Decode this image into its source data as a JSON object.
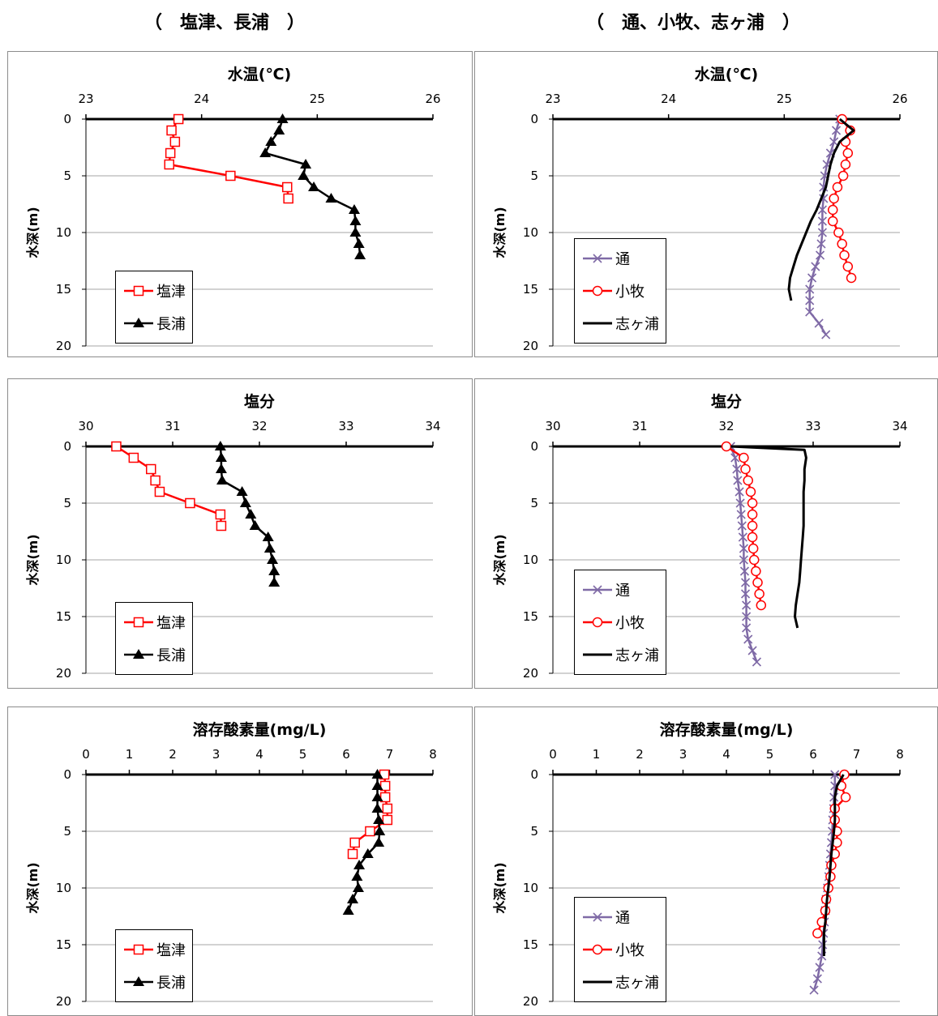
{
  "headers": {
    "left": "（　塩津、長浦　）",
    "right": "（　通、小牧、志ヶ浦　）"
  },
  "colors": {
    "shiotsu": "#ff0000",
    "nagaura": "#000000",
    "toori": "#7f6aa6",
    "komaki": "#ff0000",
    "shigaura": "#000000"
  },
  "chart_data": [
    {
      "id": "temp-left",
      "type": "line",
      "title": "水温(℃)",
      "ylabel": "水深(m)",
      "xlim": [
        23,
        26
      ],
      "xticks": [
        "23",
        "24",
        "25",
        "26"
      ],
      "ylim": [
        0,
        20
      ],
      "yticks": [
        "0",
        "5",
        "10",
        "15",
        "20"
      ],
      "grid": true,
      "legend": "bottom-left",
      "series": [
        {
          "key": "shiotsu",
          "name": "塩津",
          "marker": "square-open",
          "points": [
            [
              23.8,
              0
            ],
            [
              23.74,
              1
            ],
            [
              23.77,
              2
            ],
            [
              23.73,
              3
            ],
            [
              23.72,
              4
            ],
            [
              24.25,
              5
            ],
            [
              24.74,
              6
            ],
            [
              24.75,
              7
            ]
          ]
        },
        {
          "key": "nagaura",
          "name": "長浦",
          "marker": "triangle",
          "points": [
            [
              24.7,
              0
            ],
            [
              24.67,
              1
            ],
            [
              24.6,
              2
            ],
            [
              24.55,
              3
            ],
            [
              24.9,
              4
            ],
            [
              24.88,
              5
            ],
            [
              24.97,
              6
            ],
            [
              25.12,
              7
            ],
            [
              25.32,
              8
            ],
            [
              25.33,
              9
            ],
            [
              25.33,
              10
            ],
            [
              25.36,
              11
            ],
            [
              25.37,
              12
            ]
          ]
        }
      ]
    },
    {
      "id": "temp-right",
      "type": "line",
      "title": "水温(℃)",
      "ylabel": "水深(m)",
      "xlim": [
        23,
        26
      ],
      "xticks": [
        "23",
        "24",
        "25",
        "26"
      ],
      "ylim": [
        0,
        20
      ],
      "yticks": [
        "0",
        "5",
        "10",
        "15",
        "20"
      ],
      "grid": true,
      "legend": "bottom-left",
      "series": [
        {
          "key": "toori",
          "name": "通",
          "marker": "x",
          "points": [
            [
              25.48,
              0
            ],
            [
              25.45,
              1
            ],
            [
              25.43,
              2
            ],
            [
              25.4,
              3
            ],
            [
              25.37,
              4
            ],
            [
              25.35,
              5
            ],
            [
              25.34,
              6
            ],
            [
              25.34,
              7
            ],
            [
              25.33,
              8
            ],
            [
              25.33,
              9
            ],
            [
              25.33,
              10
            ],
            [
              25.32,
              11
            ],
            [
              25.31,
              12
            ],
            [
              25.27,
              13
            ],
            [
              25.24,
              14
            ],
            [
              25.22,
              15
            ],
            [
              25.22,
              16
            ],
            [
              25.22,
              17
            ],
            [
              25.3,
              18
            ],
            [
              25.36,
              19
            ]
          ]
        },
        {
          "key": "komaki",
          "name": "小牧",
          "marker": "circle-open",
          "points": [
            [
              25.5,
              0
            ],
            [
              25.57,
              1
            ],
            [
              25.53,
              2
            ],
            [
              25.55,
              3
            ],
            [
              25.53,
              4
            ],
            [
              25.51,
              5
            ],
            [
              25.46,
              6
            ],
            [
              25.43,
              7
            ],
            [
              25.42,
              8
            ],
            [
              25.42,
              9
            ],
            [
              25.47,
              10
            ],
            [
              25.5,
              11
            ],
            [
              25.52,
              12
            ],
            [
              25.55,
              13
            ],
            [
              25.58,
              14
            ]
          ]
        },
        {
          "key": "shigaura",
          "name": "志ヶ浦",
          "marker": "none",
          "points": [
            [
              25.48,
              0
            ],
            [
              25.6,
              1
            ],
            [
              25.48,
              2
            ],
            [
              25.43,
              3
            ],
            [
              25.4,
              4
            ],
            [
              25.38,
              5
            ],
            [
              25.36,
              6
            ],
            [
              25.32,
              7
            ],
            [
              25.28,
              8
            ],
            [
              25.23,
              9
            ],
            [
              25.19,
              10
            ],
            [
              25.15,
              11
            ],
            [
              25.11,
              12
            ],
            [
              25.08,
              13
            ],
            [
              25.05,
              14
            ],
            [
              25.04,
              15
            ],
            [
              25.06,
              16
            ]
          ]
        }
      ]
    },
    {
      "id": "sal-left",
      "type": "line",
      "title": "塩分",
      "ylabel": "水深(m)",
      "xlim": [
        30,
        34
      ],
      "xticks": [
        "30",
        "31",
        "32",
        "33",
        "34"
      ],
      "ylim": [
        0,
        20
      ],
      "yticks": [
        "0",
        "5",
        "10",
        "15",
        "20"
      ],
      "grid": true,
      "legend": "bottom-left",
      "series": [
        {
          "key": "shiotsu",
          "name": "塩津",
          "marker": "square-open",
          "points": [
            [
              30.35,
              0
            ],
            [
              30.55,
              1
            ],
            [
              30.75,
              2
            ],
            [
              30.8,
              3
            ],
            [
              30.85,
              4
            ],
            [
              31.2,
              5
            ],
            [
              31.55,
              6
            ],
            [
              31.56,
              7
            ]
          ]
        },
        {
          "key": "nagaura",
          "name": "長浦",
          "marker": "triangle",
          "points": [
            [
              31.55,
              0
            ],
            [
              31.56,
              1
            ],
            [
              31.56,
              2
            ],
            [
              31.57,
              3
            ],
            [
              31.8,
              4
            ],
            [
              31.84,
              5
            ],
            [
              31.9,
              6
            ],
            [
              31.95,
              7
            ],
            [
              32.1,
              8
            ],
            [
              32.12,
              9
            ],
            [
              32.15,
              10
            ],
            [
              32.17,
              11
            ],
            [
              32.17,
              12
            ]
          ]
        }
      ]
    },
    {
      "id": "sal-right",
      "type": "line",
      "title": "塩分",
      "ylabel": "水深(m)",
      "xlim": [
        30,
        34
      ],
      "xticks": [
        "30",
        "31",
        "32",
        "33",
        "34"
      ],
      "ylim": [
        0,
        20
      ],
      "yticks": [
        "0",
        "5",
        "10",
        "15",
        "20"
      ],
      "grid": true,
      "legend": "bottom-left",
      "series": [
        {
          "key": "toori",
          "name": "通",
          "marker": "x",
          "points": [
            [
              32.05,
              0
            ],
            [
              32.1,
              1
            ],
            [
              32.12,
              2
            ],
            [
              32.13,
              3
            ],
            [
              32.15,
              4
            ],
            [
              32.16,
              5
            ],
            [
              32.17,
              6
            ],
            [
              32.18,
              7
            ],
            [
              32.19,
              8
            ],
            [
              32.2,
              9
            ],
            [
              32.2,
              10
            ],
            [
              32.21,
              11
            ],
            [
              32.22,
              12
            ],
            [
              32.22,
              13
            ],
            [
              32.23,
              14
            ],
            [
              32.23,
              15
            ],
            [
              32.23,
              16
            ],
            [
              32.25,
              17
            ],
            [
              32.3,
              18
            ],
            [
              32.35,
              19
            ]
          ]
        },
        {
          "key": "komaki",
          "name": "小牧",
          "marker": "circle-open",
          "points": [
            [
              32.0,
              0
            ],
            [
              32.2,
              1
            ],
            [
              32.22,
              2
            ],
            [
              32.25,
              3
            ],
            [
              32.28,
              4
            ],
            [
              32.3,
              5
            ],
            [
              32.3,
              6
            ],
            [
              32.3,
              7
            ],
            [
              32.3,
              8
            ],
            [
              32.31,
              9
            ],
            [
              32.32,
              10
            ],
            [
              32.34,
              11
            ],
            [
              32.36,
              12
            ],
            [
              32.38,
              13
            ],
            [
              32.4,
              14
            ]
          ]
        },
        {
          "key": "shigaura",
          "name": "志ヶ浦",
          "marker": "none",
          "points": [
            [
              32.05,
              0
            ],
            [
              32.9,
              0.3
            ],
            [
              32.92,
              1
            ],
            [
              32.9,
              2
            ],
            [
              32.9,
              3
            ],
            [
              32.89,
              4
            ],
            [
              32.89,
              5
            ],
            [
              32.89,
              6
            ],
            [
              32.89,
              7
            ],
            [
              32.88,
              8
            ],
            [
              32.87,
              9
            ],
            [
              32.86,
              10
            ],
            [
              32.85,
              11
            ],
            [
              32.84,
              12
            ],
            [
              32.82,
              13
            ],
            [
              32.8,
              14
            ],
            [
              32.79,
              15
            ],
            [
              32.82,
              16
            ]
          ]
        }
      ]
    },
    {
      "id": "do-left",
      "type": "line",
      "title": "溶存酸素量(mg/L)",
      "ylabel": "水深(m)",
      "xlim": [
        0,
        8
      ],
      "xticks": [
        "0",
        "1",
        "2",
        "3",
        "4",
        "5",
        "6",
        "7",
        "8"
      ],
      "ylim": [
        0,
        20
      ],
      "yticks": [
        "0",
        "5",
        "10",
        "15",
        "20"
      ],
      "grid": true,
      "legend": "bottom-left",
      "series": [
        {
          "key": "shiotsu",
          "name": "塩津",
          "marker": "square-open",
          "points": [
            [
              6.88,
              0
            ],
            [
              6.9,
              1
            ],
            [
              6.9,
              2
            ],
            [
              6.95,
              3
            ],
            [
              6.95,
              4
            ],
            [
              6.55,
              5
            ],
            [
              6.2,
              6
            ],
            [
              6.15,
              7
            ]
          ]
        },
        {
          "key": "nagaura",
          "name": "長浦",
          "marker": "triangle",
          "points": [
            [
              6.72,
              0
            ],
            [
              6.72,
              1
            ],
            [
              6.72,
              2
            ],
            [
              6.72,
              3
            ],
            [
              6.75,
              4
            ],
            [
              6.77,
              5
            ],
            [
              6.75,
              6
            ],
            [
              6.5,
              7
            ],
            [
              6.3,
              8
            ],
            [
              6.25,
              9
            ],
            [
              6.28,
              10
            ],
            [
              6.15,
              11
            ],
            [
              6.05,
              12
            ]
          ]
        }
      ]
    },
    {
      "id": "do-right",
      "type": "line",
      "title": "溶存酸素量(mg/L)",
      "ylabel": "水深(m)",
      "xlim": [
        0,
        8
      ],
      "xticks": [
        "0",
        "1",
        "2",
        "3",
        "4",
        "5",
        "6",
        "7",
        "8"
      ],
      "ylim": [
        0,
        20
      ],
      "yticks": [
        "0",
        "5",
        "10",
        "15",
        "20"
      ],
      "grid": true,
      "legend": "bottom-left",
      "series": [
        {
          "key": "toori",
          "name": "通",
          "marker": "x",
          "points": [
            [
              6.5,
              0
            ],
            [
              6.5,
              1
            ],
            [
              6.48,
              2
            ],
            [
              6.47,
              3
            ],
            [
              6.45,
              4
            ],
            [
              6.44,
              5
            ],
            [
              6.42,
              6
            ],
            [
              6.4,
              7
            ],
            [
              6.38,
              8
            ],
            [
              6.36,
              9
            ],
            [
              6.33,
              10
            ],
            [
              6.3,
              11
            ],
            [
              6.28,
              12
            ],
            [
              6.26,
              13
            ],
            [
              6.24,
              14
            ],
            [
              6.22,
              15
            ],
            [
              6.2,
              16
            ],
            [
              6.15,
              17
            ],
            [
              6.1,
              18
            ],
            [
              6.02,
              19
            ]
          ]
        },
        {
          "key": "komaki",
          "name": "小牧",
          "marker": "circle-open",
          "points": [
            [
              6.72,
              0
            ],
            [
              6.65,
              1
            ],
            [
              6.75,
              2
            ],
            [
              6.5,
              3
            ],
            [
              6.5,
              4
            ],
            [
              6.55,
              5
            ],
            [
              6.55,
              6
            ],
            [
              6.5,
              7
            ],
            [
              6.42,
              8
            ],
            [
              6.4,
              9
            ],
            [
              6.35,
              10
            ],
            [
              6.3,
              11
            ],
            [
              6.28,
              12
            ],
            [
              6.2,
              13
            ],
            [
              6.1,
              14
            ]
          ]
        },
        {
          "key": "shigaura",
          "name": "志ヶ浦",
          "marker": "none",
          "points": [
            [
              6.7,
              0
            ],
            [
              6.55,
              1
            ],
            [
              6.5,
              2
            ],
            [
              6.5,
              3
            ],
            [
              6.5,
              4
            ],
            [
              6.48,
              5
            ],
            [
              6.45,
              6
            ],
            [
              6.42,
              7
            ],
            [
              6.4,
              8
            ],
            [
              6.38,
              9
            ],
            [
              6.35,
              10
            ],
            [
              6.32,
              11
            ],
            [
              6.3,
              12
            ],
            [
              6.28,
              13
            ],
            [
              6.25,
              14
            ],
            [
              6.25,
              15
            ],
            [
              6.25,
              16
            ]
          ]
        }
      ]
    }
  ]
}
